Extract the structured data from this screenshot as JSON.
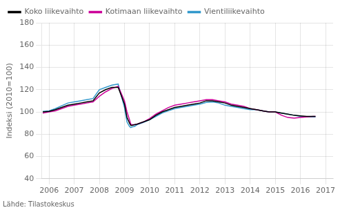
{
  "chart_data": {
    "type": "line",
    "y_label": "Indeksi (2010=100)",
    "annotation": "Lähde: Tilastokeskus",
    "x": [
      2005.75,
      2006.0,
      2006.25,
      2006.5,
      2006.75,
      2007.0,
      2007.25,
      2007.5,
      2007.75,
      2008.0,
      2008.25,
      2008.5,
      2008.75,
      2009.0,
      2009.1,
      2009.2,
      2009.25,
      2009.3,
      2009.4,
      2009.5,
      2009.75,
      2010.0,
      2010.25,
      2010.5,
      2010.75,
      2011.0,
      2011.25,
      2011.5,
      2011.75,
      2012.0,
      2012.25,
      2012.5,
      2012.75,
      2013.0,
      2013.25,
      2013.5,
      2013.75,
      2014.0,
      2014.25,
      2014.5,
      2014.75,
      2015.0,
      2015.25,
      2015.5,
      2015.75,
      2016.0,
      2016.25,
      2016.5,
      2016.6
    ],
    "series": [
      {
        "name": "Koko liikevaihto",
        "color": "#000000",
        "values": [
          100,
          100.5,
          102,
          104,
          106,
          107,
          108,
          109,
          110,
          117,
          120,
          122,
          122,
          107,
          95,
          90,
          88,
          88,
          88.5,
          89,
          91,
          93,
          97,
          100,
          102,
          104,
          105,
          106,
          107,
          108,
          110,
          110,
          109,
          108,
          106,
          105,
          104,
          103,
          102,
          101,
          100,
          100,
          99,
          98,
          97,
          96.5,
          96,
          96,
          96
        ]
      },
      {
        "name": "Kotimaan liikevaihto",
        "color": "#cc0099",
        "values": [
          99,
          100,
          101,
          103,
          105,
          106,
          107,
          108,
          109,
          114,
          118,
          121,
          123,
          110,
          100,
          93,
          89,
          88.5,
          88.5,
          89,
          91,
          94,
          98,
          101,
          104,
          106,
          107,
          108,
          109,
          110,
          111,
          111,
          110,
          109,
          107,
          106,
          105,
          103,
          102,
          101,
          100,
          100,
          97,
          95,
          94.5,
          95,
          95.5,
          96,
          96
        ]
      },
      {
        "name": "Vientiliikevaihto",
        "color": "#3399cc",
        "values": [
          100.5,
          101,
          103,
          105.5,
          108,
          109,
          110,
          111,
          112,
          120,
          122,
          124,
          125,
          104,
          91,
          87,
          86,
          86.5,
          87,
          88.5,
          90.5,
          93,
          96,
          99,
          101,
          103,
          104,
          105,
          106,
          107,
          108.5,
          109,
          108,
          106,
          105,
          104,
          103,
          102,
          102,
          101,
          100,
          100,
          99,
          98,
          97,
          96,
          95.5,
          95.5,
          95.5
        ]
      }
    ],
    "xlim": [
      2005.7,
      2017.3
    ],
    "xticks": [
      2006,
      2007,
      2008,
      2009,
      2010,
      2011,
      2012,
      2013,
      2014,
      2015,
      2016,
      2017
    ],
    "ylim": [
      40,
      180
    ],
    "yticks": [
      40,
      60,
      80,
      100,
      120,
      140,
      160,
      180
    ],
    "grid": true,
    "legend": "upper left"
  }
}
